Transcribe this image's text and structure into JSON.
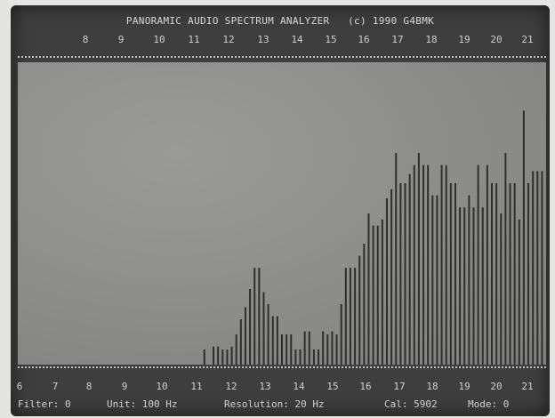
{
  "title": "PANORAMIC AUDIO SPECTRUM ANALYZER   (c) 1990 G4BMK",
  "scale_labels_top": [
    "",
    "",
    "8",
    "9",
    "10",
    "11",
    "12",
    "13",
    "14",
    "15",
    "16",
    "17",
    "18",
    "19",
    "20",
    "21"
  ],
  "scale_labels_bottom": [
    "6",
    "7",
    "8",
    "9",
    "10",
    "11",
    "12",
    "13",
    "14",
    "15",
    "16",
    "17",
    "18",
    "19",
    "20",
    "21"
  ],
  "status": {
    "filter": "Filter: 0",
    "unit": "Unit: 100 Hz",
    "resolution": "Resolution: 20 Hz",
    "cal": "Cal: 5902",
    "mode": "Mode: 0"
  },
  "chart_data": {
    "type": "bar",
    "x_start": 6,
    "x_step": 0.2,
    "ylim": [
      0,
      100
    ],
    "values": [
      0,
      0,
      0,
      0,
      0,
      0,
      0,
      0,
      0,
      0,
      0,
      0,
      0,
      0,
      0,
      0,
      0,
      0,
      0,
      0,
      0,
      0,
      0,
      0,
      0,
      0,
      0,
      0,
      0,
      0,
      0,
      0,
      0,
      0,
      0,
      0,
      0,
      0,
      0,
      0,
      5,
      0,
      6,
      6,
      5,
      5,
      6,
      10,
      15,
      19,
      25,
      32,
      32,
      24,
      20,
      16,
      16,
      10,
      10,
      10,
      5,
      5,
      11,
      11,
      5,
      5,
      11,
      10,
      11,
      10,
      20,
      32,
      32,
      32,
      36,
      40,
      50,
      46,
      46,
      48,
      55,
      58,
      70,
      60,
      60,
      63,
      66,
      70,
      66,
      66,
      56,
      56,
      66,
      66,
      60,
      60,
      52,
      52,
      56,
      52,
      66,
      52,
      66,
      60,
      60,
      50,
      70,
      60,
      60,
      48,
      84,
      60,
      64,
      64,
      64
    ]
  },
  "colors": {
    "screen": "#3e3e3e",
    "plot_bg": "#8f8f8d",
    "bar": "#2e2e2e",
    "text": "#d0d0d0"
  }
}
